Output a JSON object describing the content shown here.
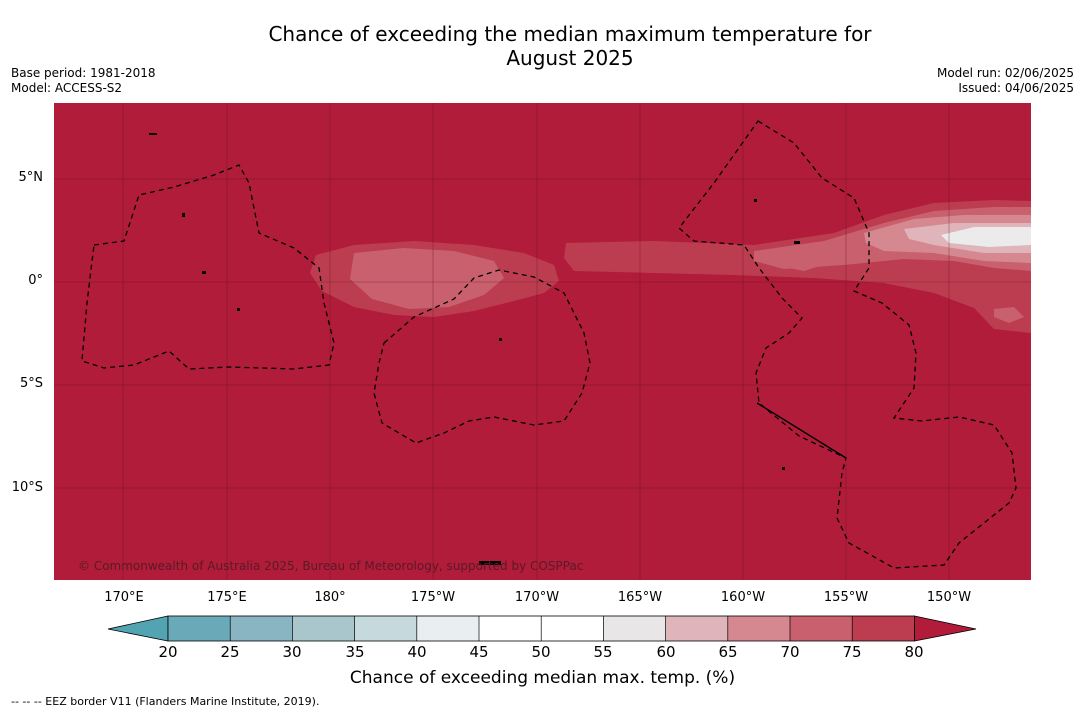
{
  "title_line1": "Chance of exceeding the median maximum temperature for",
  "title_line2": "August 2025",
  "meta": {
    "base_period": "Base period: 1981-2018",
    "model": "Model: ACCESS-S2",
    "model_run": "Model run: 02/06/2025",
    "issued": "Issued: 04/06/2025"
  },
  "map": {
    "lat_labels": [
      "5°N",
      "0°",
      "5°S",
      "10°S"
    ],
    "lon_labels": [
      "170°E",
      "175°E",
      "180°",
      "175°W",
      "170°W",
      "165°W",
      "160°W",
      "155°W",
      "150°W"
    ],
    "copyright": "© Commonwealth of Australia 2025, Bureau of Meteorology, supported by COSPPac"
  },
  "colorbar": {
    "ticks": [
      "20",
      "25",
      "30",
      "35",
      "40",
      "45",
      "50",
      "55",
      "60",
      "65",
      "70",
      "75",
      "80"
    ],
    "colors": [
      "#6aaab8",
      "#88b5c1",
      "#a8c6cc",
      "#c6dadd",
      "#e9eff1",
      "#ffffff",
      "#ffffff",
      "#e8e6e6",
      "#dfb4ba",
      "#d68891",
      "#c9606d",
      "#bd3d50"
    ],
    "low_color": "#52a4b2",
    "high_color": "#b01c3a",
    "label": "Chance of exceeding median max. temp. (%)"
  },
  "footer": "--  --  -- EEZ border V11 (Flanders Marine Institute, 2019)."
}
